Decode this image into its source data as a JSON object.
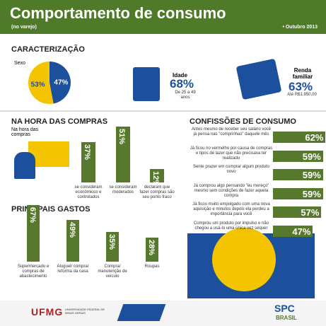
{
  "header": {
    "title": "Comportamento de consumo",
    "subtitle": "(no varejo)",
    "date": "• Outubro 2013"
  },
  "caracterizacao": {
    "title": "CARACTERIZAÇÃO",
    "sexo": {
      "label": "Sexo",
      "slices": [
        {
          "value": 47,
          "value_label": "47%",
          "color": "#1c4f9c"
        },
        {
          "value": 53,
          "value_label": "53%",
          "color": "#f5c400"
        }
      ]
    },
    "idade": {
      "label": "Idade",
      "value_label": "68%",
      "note": "De 25 a 49 anos"
    },
    "renda": {
      "label": "Renda familiar",
      "value_label": "63%",
      "note": "Até R$1.950,00"
    }
  },
  "na_hora": {
    "title": "NA HORA DAS COMPRAS",
    "caption": "Na hora das compras",
    "color": "#56792d",
    "items": [
      {
        "value": 37,
        "value_label": "37%",
        "label": "se consideram econômicos e controlados"
      },
      {
        "value": 51,
        "value_label": "51%",
        "label": "se consideram moderados"
      },
      {
        "value": 12,
        "value_label": "12%",
        "label": "declaram que fazer compras são seu ponto fraco"
      }
    ]
  },
  "gastos": {
    "title": "PRINCIPAIS GASTOS",
    "color": "#56792d",
    "items": [
      {
        "value": 67,
        "value_label": "67%",
        "label": "Supermercado e compras de abastecimento"
      },
      {
        "value": 49,
        "value_label": "49%",
        "label": "Aluguel/ compra/ reforma da casa"
      },
      {
        "value": 35,
        "value_label": "35%",
        "label": "Compra/ manutenção de veículo"
      },
      {
        "value": 28,
        "value_label": "28%",
        "label": "Roupas"
      }
    ]
  },
  "confissoes": {
    "title": "CONFISSÕES DE CONSUMO",
    "color": "#56792d",
    "items": [
      {
        "value": 62,
        "value_label": "62%",
        "label": "Antes mesmo de receber seu salário você já pensa nas \"comprinhas\" daquele mês"
      },
      {
        "value": 59,
        "value_label": "59%",
        "label": "Já ficou no vermelho por causa de compras e tipos de lazer que não precisava ter realizado"
      },
      {
        "value": 59,
        "value_label": "59%",
        "label": "Sente prazer em comprar algum produto novo"
      },
      {
        "value": 59,
        "value_label": "59%",
        "label": "Já comprou algo pensando \"eu mereço\" mesmo sem condições de fazer aquela compra"
      },
      {
        "value": 57,
        "value_label": "57%",
        "label": "Já ficou muito empolgado com uma nova aquisição e minutos depois ela perdeu a importância para você"
      },
      {
        "value": 47,
        "value_label": "47%",
        "label": "Comprou um produto por impulso e não chegou a usá-lo uma única vez sequer"
      }
    ]
  },
  "footer": {
    "ufmg": "UFMG",
    "ufmg_name": "UNIVERSIDADE FEDERAL DE MINAS GERAIS",
    "spc": "SPC",
    "spc_sub": "BRASIL"
  }
}
